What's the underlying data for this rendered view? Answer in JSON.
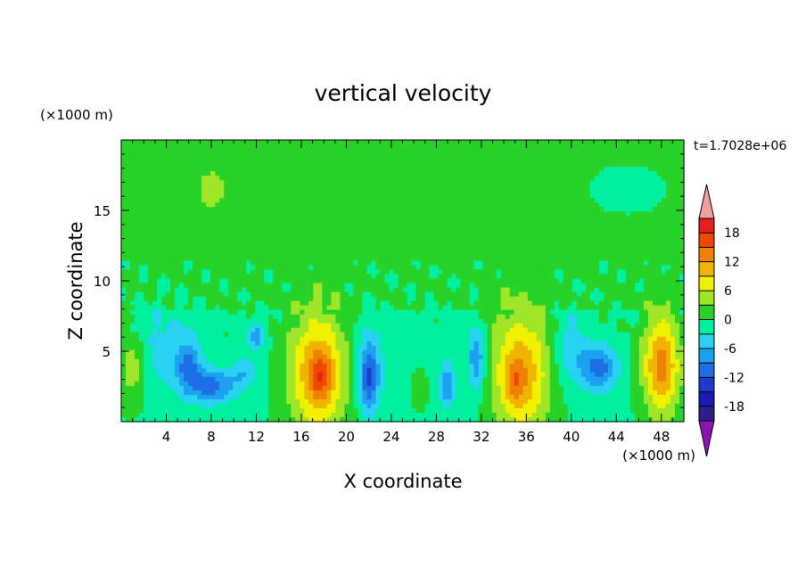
{
  "chart_data": {
    "type": "heatmap",
    "title": "vertical velocity",
    "xlabel": "X coordinate",
    "ylabel": "Z coordinate",
    "x_unit_label": "(×1000 m)",
    "y_unit_label": "(×1000 m)",
    "time_label": "t=1.7028e+06",
    "xlim": [
      0,
      50
    ],
    "ylim": [
      0,
      20
    ],
    "x_ticks": [
      4,
      8,
      12,
      16,
      20,
      24,
      28,
      32,
      36,
      40,
      44,
      48
    ],
    "x_tick_labels": [
      "4",
      "8",
      "12",
      "16",
      "20",
      "24",
      "28",
      "32",
      "36",
      "40",
      "44",
      "48"
    ],
    "y_ticks": [
      5,
      10,
      15
    ],
    "y_tick_labels": [
      "5",
      "10",
      "15"
    ],
    "colorbar": {
      "levels": [
        -21,
        -18,
        -15,
        -12,
        -9,
        -6,
        -3,
        0,
        3,
        6,
        9,
        12,
        15,
        18,
        21
      ],
      "label_values": [
        18,
        12,
        6,
        0,
        -6,
        -12,
        -18
      ],
      "labels": [
        "18",
        "12",
        "6",
        "0",
        "-6",
        "-12",
        "-18"
      ],
      "colors": [
        "#2e1e8c",
        "#1a1ab4",
        "#1e3ccc",
        "#1e6ee6",
        "#1ea0f0",
        "#28d2f0",
        "#00f0a0",
        "#28d228",
        "#a0e628",
        "#f0f000",
        "#f0b400",
        "#f08000",
        "#f04800",
        "#e61e1e"
      ],
      "over_color": "#f0a0a0",
      "under_color": "#8c14b4"
    },
    "features": [
      {
        "x": 17.5,
        "z": 3.5,
        "rx": 2.6,
        "rz": 4.2,
        "w": 13
      },
      {
        "x": 17.7,
        "z": 3.2,
        "rx": 0.9,
        "rz": 1.6,
        "w": 6
      },
      {
        "x": 35.5,
        "z": 3.5,
        "rx": 2.6,
        "rz": 4.4,
        "w": 12
      },
      {
        "x": 35.0,
        "z": 2.8,
        "rx": 0.8,
        "rz": 1.3,
        "w": 5
      },
      {
        "x": 48.0,
        "z": 4.0,
        "rx": 1.6,
        "rz": 3.5,
        "w": 14
      },
      {
        "x": 1.0,
        "z": 4.0,
        "rx": 1.2,
        "rz": 2.5,
        "w": 6
      },
      {
        "x": 26.5,
        "z": 2.5,
        "rx": 0.8,
        "rz": 1.5,
        "w": 4
      },
      {
        "x": 22.0,
        "z": 3.2,
        "rx": 0.9,
        "rz": 2.6,
        "w": -12
      },
      {
        "x": 8.0,
        "z": 2.5,
        "rx": 2.2,
        "rz": 1.2,
        "w": -10
      },
      {
        "x": 6.0,
        "z": 4.0,
        "rx": 1.0,
        "rz": 1.5,
        "w": -8
      },
      {
        "x": 31.6,
        "z": 4.5,
        "rx": 0.7,
        "rz": 2.2,
        "w": -9
      },
      {
        "x": 29.0,
        "z": 2.5,
        "rx": 0.6,
        "rz": 1.5,
        "w": -8
      },
      {
        "x": 42.5,
        "z": 3.8,
        "rx": 1.6,
        "rz": 1.6,
        "w": -10
      },
      {
        "x": 11.0,
        "z": 3.5,
        "rx": 1.2,
        "rz": 1.0,
        "w": -5
      },
      {
        "x": 12.0,
        "z": 6.0,
        "rx": 0.8,
        "rz": 1.0,
        "w": -7
      },
      {
        "x": 40.0,
        "z": 5.0,
        "rx": 1.5,
        "rz": 2.5,
        "w": -5
      },
      {
        "x": 4.0,
        "z": 5.0,
        "rx": 3.0,
        "rz": 3.0,
        "w": -4
      },
      {
        "x": 25.0,
        "z": 4.5,
        "rx": 6.0,
        "rz": 3.5,
        "w": -1.5
      },
      {
        "x": 45.0,
        "z": 16.5,
        "rx": 4.0,
        "rz": 2.0,
        "w": -3
      },
      {
        "x": 8.0,
        "z": 16.5,
        "rx": 1.2,
        "rz": 1.3,
        "w": 3.5
      },
      {
        "x": 21.0,
        "z": 17.0,
        "rx": 5.0,
        "rz": 2.5,
        "w": 1.2
      }
    ]
  }
}
